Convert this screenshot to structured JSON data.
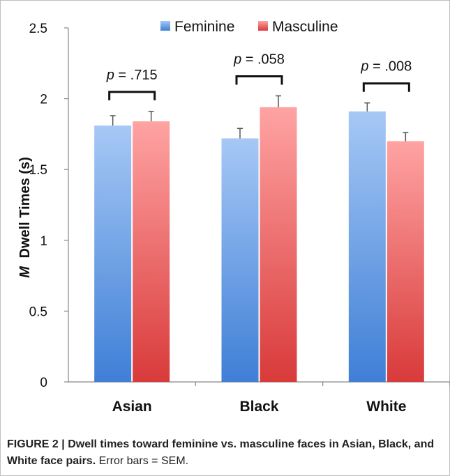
{
  "chart_data": {
    "type": "bar",
    "categories": [
      "Asian",
      "Black",
      "White"
    ],
    "series": [
      {
        "name": "Feminine",
        "values": [
          1.81,
          1.72,
          1.91
        ],
        "errors": [
          0.07,
          0.07,
          0.06
        ]
      },
      {
        "name": "Masculine",
        "values": [
          1.84,
          1.94,
          1.7
        ],
        "errors": [
          0.07,
          0.08,
          0.06
        ]
      }
    ],
    "ylabel_italic": "M",
    "ylabel_rest": "Dwell Times (s)",
    "ylim": [
      0,
      2.5
    ],
    "yticks": [
      "0",
      "0.5",
      "1",
      "1.5",
      "2",
      "2.5"
    ],
    "annotations": [
      {
        "category": "Asian",
        "p_italic": "p",
        "text": "= .715"
      },
      {
        "category": "Black",
        "p_italic": "p",
        "text": "= .058"
      },
      {
        "category": "White",
        "p_italic": "p",
        "text": "= .008"
      }
    ],
    "legend_position": "top-center",
    "grid": false
  },
  "colors": {
    "feminine_top": "#a6c8f5",
    "feminine_bottom": "#3f7fd6",
    "masculine_top": "#ffa3a3",
    "masculine_bottom": "#d93a3a",
    "axis": "#888888",
    "text": "#111111"
  },
  "caption": {
    "label": "FIGURE 2",
    "separator": "|",
    "title": "Dwell times toward feminine vs. masculine faces in Asian, Black, and White face pairs.",
    "note": "Error bars = SEM."
  }
}
